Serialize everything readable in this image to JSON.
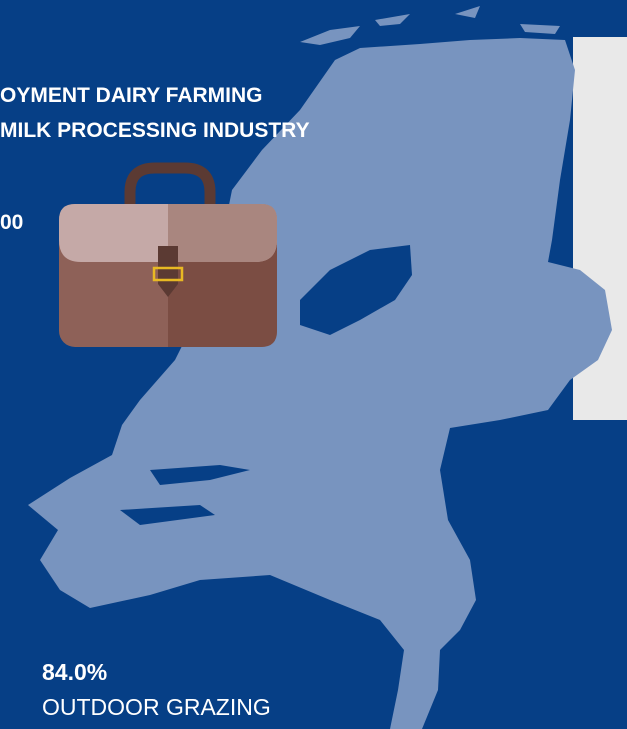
{
  "employment": {
    "title_lines": [
      "OYMENT DAIRY FARMING",
      "MILK PROCESSING INDUSTRY"
    ],
    "value": "00"
  },
  "grazing": {
    "value": "84.0%",
    "label": "OUTDOOR GRAZING"
  }
}
